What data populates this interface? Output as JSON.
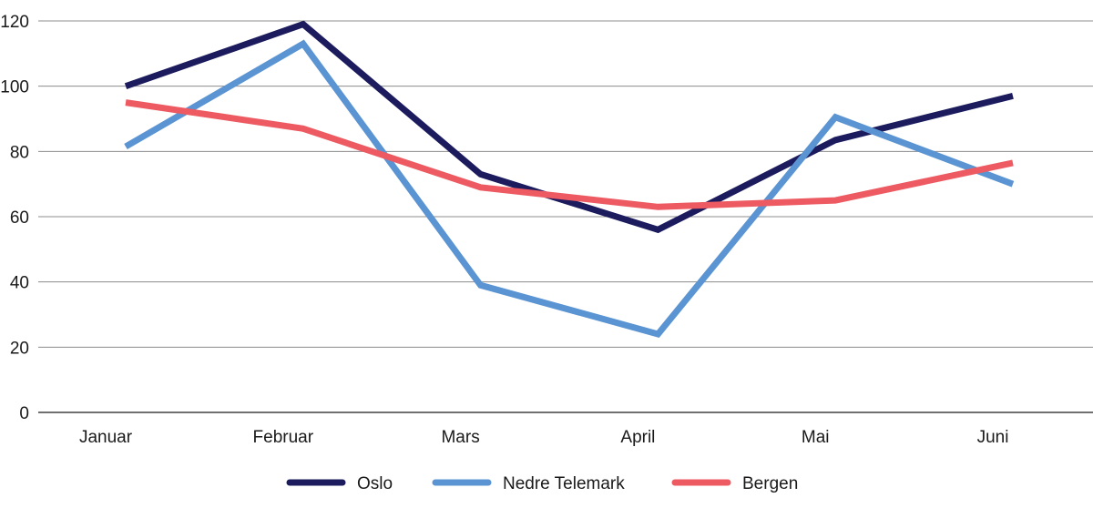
{
  "chart_data": {
    "type": "line",
    "categories": [
      "Januar",
      "Februar",
      "Mars",
      "April",
      "Mai",
      "Juni"
    ],
    "series": [
      {
        "name": "Oslo",
        "color": "#1b1b5e",
        "values": [
          100,
          119,
          73,
          56,
          83.5,
          97
        ]
      },
      {
        "name": "Nedre Telemark",
        "color": "#5b94d2",
        "values": [
          81.5,
          113,
          39,
          24,
          90.5,
          70
        ]
      },
      {
        "name": "Bergen",
        "color": "#ed5a62",
        "values": [
          95,
          87,
          69,
          63,
          65,
          76.5
        ]
      }
    ],
    "y_ticks": [
      "0",
      "20",
      "40",
      "60",
      "80",
      "100",
      "120"
    ],
    "ylim": [
      0,
      120
    ],
    "grid": true,
    "legend_position": "bottom"
  }
}
